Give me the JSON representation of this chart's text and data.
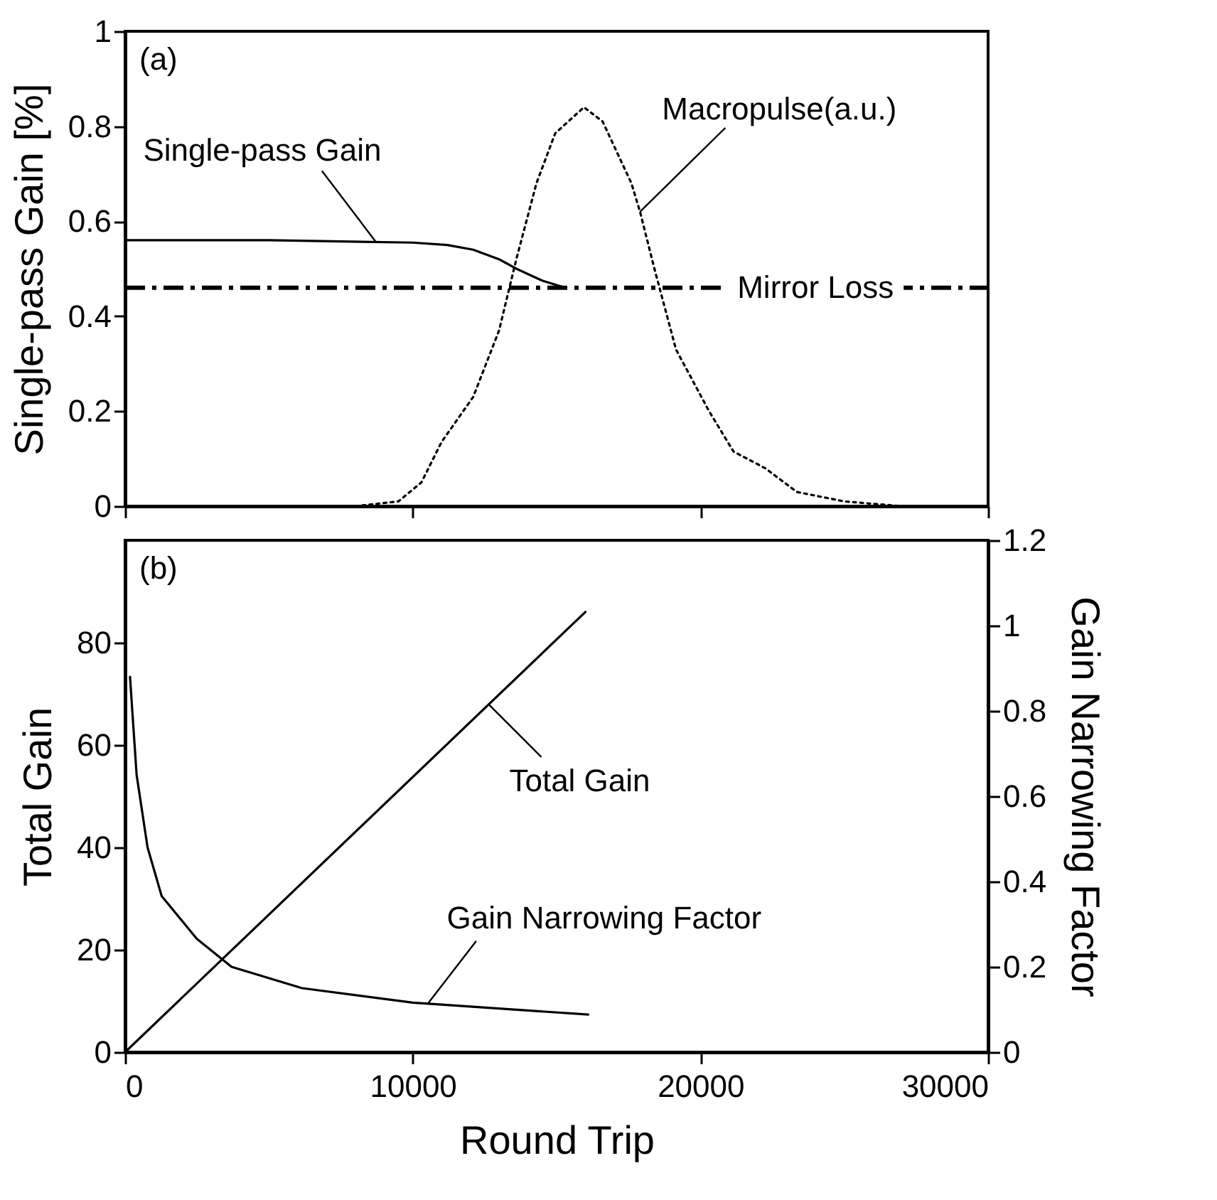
{
  "chart_data": [
    {
      "type": "line",
      "ylabel": "Single-pass Gain [%]",
      "annotations": [
        "(a)"
      ],
      "xlim": [
        0,
        30000
      ],
      "xticks": [
        0,
        10000,
        20000,
        30000
      ],
      "ylim": [
        0,
        1
      ],
      "yticks": [
        0,
        0.2,
        0.4,
        0.6,
        0.8,
        1
      ],
      "tick_labels": "y",
      "grid": false,
      "series": [
        {
          "name": "Single-pass Gain",
          "color": "#000000",
          "line_style": "solid",
          "x": [
            0,
            5000,
            10000,
            11200,
            12100,
            13000,
            13600,
            14500,
            15300
          ],
          "values": [
            0.56,
            0.56,
            0.555,
            0.55,
            0.54,
            0.52,
            0.5,
            0.475,
            0.46
          ]
        },
        {
          "name": "Macropulse(a.u.)",
          "color": "#000000",
          "line_style": "dotted",
          "x": [
            8000,
            9500,
            10300,
            11000,
            12100,
            13000,
            13600,
            14300,
            14950,
            15950,
            16600,
            17600,
            17900,
            18400,
            19150,
            20300,
            21150,
            22250,
            23350,
            25000,
            27000,
            30000
          ],
          "values": [
            0,
            0.01,
            0.05,
            0.135,
            0.23,
            0.37,
            0.52,
            0.68,
            0.785,
            0.84,
            0.81,
            0.68,
            0.62,
            0.5,
            0.33,
            0.2,
            0.115,
            0.08,
            0.03,
            0.01,
            0,
            0
          ]
        }
      ],
      "ref_lines": [
        {
          "axis": "y",
          "value": 0.46,
          "label": "Mirror Loss",
          "color": "#000000",
          "line_style": "dashed"
        }
      ]
    },
    {
      "type": "line",
      "xlabel": "Round Trip",
      "ylabel": "Total Gain",
      "y2label": "Gain Narrowing Factor",
      "annotations": [
        "(b)"
      ],
      "xlim": [
        0,
        30000
      ],
      "xticks": [
        0,
        10000,
        20000,
        30000
      ],
      "ylim": [
        0,
        100
      ],
      "yticks": [
        0,
        20,
        40,
        60,
        80
      ],
      "y2lim": [
        0,
        1.2
      ],
      "y2ticks": [
        0,
        0.2,
        0.4,
        0.6,
        0.8,
        1,
        1.2
      ],
      "grid": false,
      "series": [
        {
          "name": "Total Gain",
          "color": "#000000",
          "line_style": "solid",
          "x": [
            0,
            16000
          ],
          "values": [
            0,
            86
          ]
        },
        {
          "name": "Gain Narrowing Factor",
          "color": "#000000",
          "line_style": "solid",
          "axis": "y2",
          "x": [
            170,
            400,
            780,
            1270,
            2490,
            3700,
            6150,
            10000,
            16100
          ],
          "values": [
            0.88,
            0.65,
            0.48,
            0.366,
            0.266,
            0.2,
            0.15,
            0.116,
            0.088
          ]
        }
      ]
    }
  ]
}
